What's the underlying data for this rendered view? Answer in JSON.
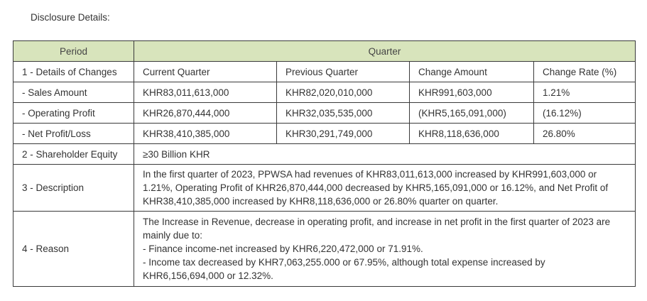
{
  "title": "Disclosure Details:",
  "colors": {
    "header_bg": "#d8e4bc",
    "border": "#3a3a3a"
  },
  "header": {
    "period": "Period",
    "quarter": "Quarter"
  },
  "details": {
    "label": "1 - Details of Changes",
    "columns": [
      "Current Quarter",
      "Previous Quarter",
      "Change Amount",
      "Change Rate (%)"
    ]
  },
  "rows": [
    {
      "label": "- Sales Amount",
      "values": [
        "KHR83,011,613,000",
        "KHR82,020,010,000",
        "KHR991,603,000",
        "1.21%"
      ]
    },
    {
      "label": "- Operating Profit",
      "values": [
        "KHR26,870,444,000",
        "KHR32,035,535,000",
        "(KHR5,165,091,000)",
        "(16.12%)"
      ]
    },
    {
      "label": "- Net Profit/Loss",
      "values": [
        "KHR38,410,385,000",
        "KHR30,291,749,000",
        "KHR8,118,636,000",
        "26.80%"
      ]
    }
  ],
  "equity": {
    "label": "2 - Shareholder Equity",
    "value": "≥30 Billion KHR"
  },
  "description": {
    "label": "3 - Description",
    "text": "In the first quarter of 2023, PPWSA had revenues of KHR83,011,613,000 increased by KHR991,603,000 or 1.21%, Operating Profit of KHR26,870,444,000 decreased by KHR5,165,091,000 or 16.12%, and Net Profit of KHR38,410,385,000 increased by KHR8,118,636,000 or 26.80% quarter on quarter."
  },
  "reason": {
    "label": "4 - Reason",
    "lines": [
      "The Increase in Revenue, decrease in operating profit, and increase in net profit in the first quarter of 2023 are mainly due to:",
      "- Finance income-net increased by KHR6,220,472,000 or 71.91%.",
      "- Income tax decreased by KHR7,063,255.000 or 67.95%, although total expense increased by KHR6,156,694,000 or 12.32%."
    ]
  }
}
